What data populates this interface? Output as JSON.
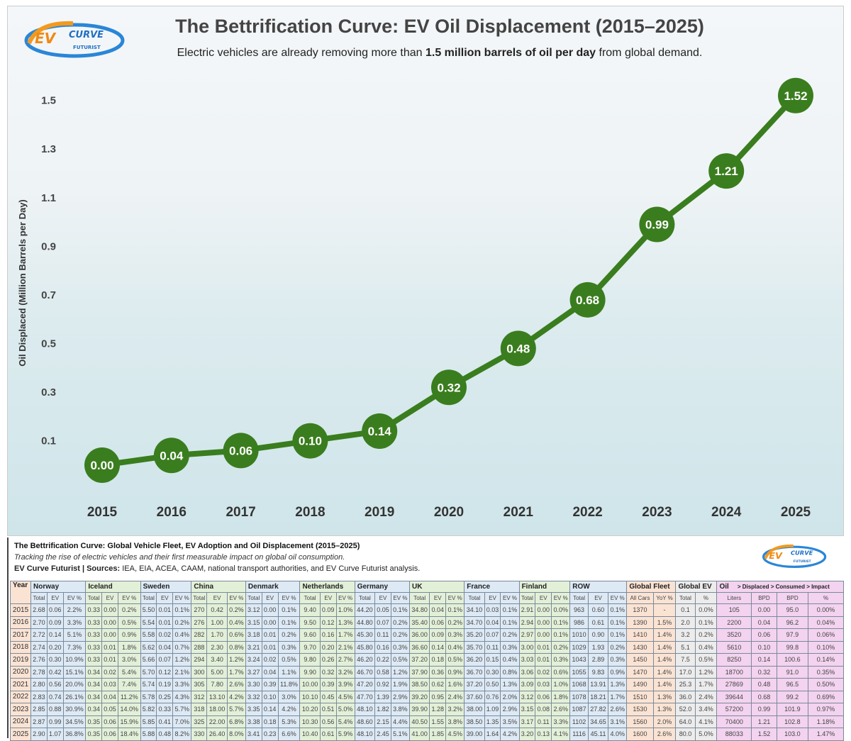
{
  "header": {
    "title": "The Bettrification Curve: EV Oil Displacement (2015–2025)",
    "subtitle_pre": "Electric vehicles are already removing more than ",
    "subtitle_bold": "1.5 million barrels of oil per day",
    "subtitle_post": " from global demand.",
    "logo_text": "EV CURVE FUTURIST"
  },
  "chart_data": {
    "type": "line",
    "ylabel": "Oil Displaced (Million Barrels per Day)",
    "xlabel": "",
    "categories": [
      "2015",
      "2016",
      "2017",
      "2018",
      "2019",
      "2020",
      "2021",
      "2022",
      "2023",
      "2024",
      "2025"
    ],
    "values": [
      0.0,
      0.04,
      0.06,
      0.1,
      0.14,
      0.32,
      0.48,
      0.68,
      0.99,
      1.21,
      1.52
    ],
    "yticks": [
      0.1,
      0.3,
      0.5,
      0.7,
      0.9,
      1.1,
      1.3,
      1.5
    ],
    "ylim": [
      0,
      1.6
    ],
    "grid": false,
    "color": "#3a7d1e"
  },
  "table": {
    "title": "The Bettrification Curve: Global Vehicle Fleet, EV Adoption and Oil Displacement (2015–2025)",
    "subtitle": "Tracking the rise of electric vehicles and their first measurable impact on global oil consumption.",
    "credit_bold": "EV Curve Futurist | Sources:",
    "credit": " IEA, EIA, ACEA, CAAM, national transport authorities, and EV Curve Futurist analysis.",
    "year_label": "Year",
    "groups": [
      {
        "name": "Norway",
        "color": "#dde9f5",
        "sub": [
          "Total",
          "EV",
          "EV %"
        ]
      },
      {
        "name": "Iceland",
        "color": "#e3f0d8",
        "sub": [
          "Total",
          "EV",
          "EV %"
        ]
      },
      {
        "name": "Sweden",
        "color": "#dde9f5",
        "sub": [
          "Total",
          "EV",
          "EV %"
        ]
      },
      {
        "name": "China",
        "color": "#e3f0d8",
        "sub": [
          "Total",
          "EV",
          "EV %"
        ]
      },
      {
        "name": "Denmark",
        "color": "#dde9f5",
        "sub": [
          "Total",
          "EV",
          "EV %"
        ]
      },
      {
        "name": "Netherlands",
        "color": "#e3f0d8",
        "sub": [
          "Total",
          "EV",
          "EV %"
        ]
      },
      {
        "name": "Germany",
        "color": "#dde9f5",
        "sub": [
          "Total",
          "EV",
          "EV %"
        ]
      },
      {
        "name": "UK",
        "color": "#e3f0d8",
        "sub": [
          "Total",
          "EV",
          "EV %"
        ]
      },
      {
        "name": "France",
        "color": "#dde9f5",
        "sub": [
          "Total",
          "EV",
          "EV %"
        ]
      },
      {
        "name": "Finland",
        "color": "#e3f0d8",
        "sub": [
          "Total",
          "EV",
          "EV %"
        ]
      },
      {
        "name": "ROW",
        "color": "#dde9f5",
        "sub": [
          "Total",
          "EV",
          "EV %"
        ]
      },
      {
        "name": "Global Fleet",
        "color": "#fbe3d3",
        "sub": [
          "All Cars",
          "YoY %"
        ]
      },
      {
        "name": "Global EV",
        "color": "#ececec",
        "sub": [
          "Total",
          "%"
        ]
      },
      {
        "name": "Oil",
        "note": "> Displaced > Consumed > Impact",
        "color": "#f3d3ef",
        "sub": [
          "Liters",
          "BPD",
          "BPD",
          "%"
        ]
      }
    ],
    "rows": [
      [
        "2015",
        "2.68",
        "0.06",
        "2.2%",
        "0.33",
        "0.00",
        "0.2%",
        "5.50",
        "0.01",
        "0.1%",
        "270",
        "0.42",
        "0.2%",
        "3.12",
        "0.00",
        "0.1%",
        "9.40",
        "0.09",
        "1.0%",
        "44.20",
        "0.05",
        "0.1%",
        "34.80",
        "0.04",
        "0.1%",
        "34.10",
        "0.03",
        "0.1%",
        "2.91",
        "0.00",
        "0.0%",
        "963",
        "0.60",
        "0.1%",
        "1370",
        "-",
        "0.1",
        "0.0%",
        "105",
        "0.00",
        "95.0",
        "0.00%"
      ],
      [
        "2016",
        "2.70",
        "0.09",
        "3.3%",
        "0.33",
        "0.00",
        "0.5%",
        "5.54",
        "0.01",
        "0.2%",
        "276",
        "1.00",
        "0.4%",
        "3.15",
        "0.00",
        "0.1%",
        "9.50",
        "0.12",
        "1.3%",
        "44.80",
        "0.07",
        "0.2%",
        "35.40",
        "0.06",
        "0.2%",
        "34.70",
        "0.04",
        "0.1%",
        "2.94",
        "0.00",
        "0.1%",
        "986",
        "0.61",
        "0.1%",
        "1390",
        "1.5%",
        "2.0",
        "0.1%",
        "2200",
        "0.04",
        "96.2",
        "0.04%"
      ],
      [
        "2017",
        "2.72",
        "0.14",
        "5.1%",
        "0.33",
        "0.00",
        "0.9%",
        "5.58",
        "0.02",
        "0.4%",
        "282",
        "1.70",
        "0.6%",
        "3.18",
        "0.01",
        "0.2%",
        "9.60",
        "0.16",
        "1.7%",
        "45.30",
        "0.11",
        "0.2%",
        "36.00",
        "0.09",
        "0.3%",
        "35.20",
        "0.07",
        "0.2%",
        "2.97",
        "0.00",
        "0.1%",
        "1010",
        "0.90",
        "0.1%",
        "1410",
        "1.4%",
        "3.2",
        "0.2%",
        "3520",
        "0.06",
        "97.9",
        "0.06%"
      ],
      [
        "2018",
        "2.74",
        "0.20",
        "7.3%",
        "0.33",
        "0.01",
        "1.8%",
        "5.62",
        "0.04",
        "0.7%",
        "288",
        "2.30",
        "0.8%",
        "3.21",
        "0.01",
        "0.3%",
        "9.70",
        "0.20",
        "2.1%",
        "45.80",
        "0.16",
        "0.3%",
        "36.60",
        "0.14",
        "0.4%",
        "35.70",
        "0.11",
        "0.3%",
        "3.00",
        "0.01",
        "0.2%",
        "1029",
        "1.93",
        "0.2%",
        "1430",
        "1.4%",
        "5.1",
        "0.4%",
        "5610",
        "0.10",
        "99.8",
        "0.10%"
      ],
      [
        "2019",
        "2.76",
        "0.30",
        "10.9%",
        "0.33",
        "0.01",
        "3.0%",
        "5.66",
        "0.07",
        "1.2%",
        "294",
        "3.40",
        "1.2%",
        "3.24",
        "0.02",
        "0.5%",
        "9.80",
        "0.26",
        "2.7%",
        "46.20",
        "0.22",
        "0.5%",
        "37.20",
        "0.18",
        "0.5%",
        "36.20",
        "0.15",
        "0.4%",
        "3.03",
        "0.01",
        "0.3%",
        "1043",
        "2.89",
        "0.3%",
        "1450",
        "1.4%",
        "7.5",
        "0.5%",
        "8250",
        "0.14",
        "100.6",
        "0.14%"
      ],
      [
        "2020",
        "2.78",
        "0.42",
        "15.1%",
        "0.34",
        "0.02",
        "5.4%",
        "5.70",
        "0.12",
        "2.1%",
        "300",
        "5.00",
        "1.7%",
        "3.27",
        "0.04",
        "1.1%",
        "9.90",
        "0.32",
        "3.2%",
        "46.70",
        "0.58",
        "1.2%",
        "37.90",
        "0.36",
        "0.9%",
        "36.70",
        "0.30",
        "0.8%",
        "3.06",
        "0.02",
        "0.6%",
        "1055",
        "9.83",
        "0.9%",
        "1470",
        "1.4%",
        "17.0",
        "1.2%",
        "18700",
        "0.32",
        "91.0",
        "0.35%"
      ],
      [
        "2021",
        "2.80",
        "0.56",
        "20.0%",
        "0.34",
        "0.03",
        "7.4%",
        "5.74",
        "0.19",
        "3.3%",
        "305",
        "7.80",
        "2.6%",
        "3.30",
        "0.39",
        "11.8%",
        "10.00",
        "0.39",
        "3.9%",
        "47.20",
        "0.92",
        "1.9%",
        "38.50",
        "0.62",
        "1.6%",
        "37.20",
        "0.50",
        "1.3%",
        "3.09",
        "0.03",
        "1.0%",
        "1068",
        "13.91",
        "1.3%",
        "1490",
        "1.4%",
        "25.3",
        "1.7%",
        "27869",
        "0.48",
        "96.5",
        "0.50%"
      ],
      [
        "2022",
        "2.83",
        "0.74",
        "26.1%",
        "0.34",
        "0.04",
        "11.2%",
        "5.78",
        "0.25",
        "4.3%",
        "312",
        "13.10",
        "4.2%",
        "3.32",
        "0.10",
        "3.0%",
        "10.10",
        "0.45",
        "4.5%",
        "47.70",
        "1.39",
        "2.9%",
        "39.20",
        "0.95",
        "2.4%",
        "37.60",
        "0.76",
        "2.0%",
        "3.12",
        "0.06",
        "1.8%",
        "1078",
        "18.21",
        "1.7%",
        "1510",
        "1.3%",
        "36.0",
        "2.4%",
        "39644",
        "0.68",
        "99.2",
        "0.69%"
      ],
      [
        "2023",
        "2.85",
        "0.88",
        "30.9%",
        "0.34",
        "0.05",
        "14.0%",
        "5.82",
        "0.33",
        "5.7%",
        "318",
        "18.00",
        "5.7%",
        "3.35",
        "0.14",
        "4.2%",
        "10.20",
        "0.51",
        "5.0%",
        "48.10",
        "1.82",
        "3.8%",
        "39.90",
        "1.28",
        "3.2%",
        "38.00",
        "1.09",
        "2.9%",
        "3.15",
        "0.08",
        "2.6%",
        "1087",
        "27.82",
        "2.6%",
        "1530",
        "1.3%",
        "52.0",
        "3.4%",
        "57200",
        "0.99",
        "101.9",
        "0.97%"
      ],
      [
        "2024",
        "2.87",
        "0.99",
        "34.5%",
        "0.35",
        "0.06",
        "15.9%",
        "5.85",
        "0.41",
        "7.0%",
        "325",
        "22.00",
        "6.8%",
        "3.38",
        "0.18",
        "5.3%",
        "10.30",
        "0.56",
        "5.4%",
        "48.60",
        "2.15",
        "4.4%",
        "40.50",
        "1.55",
        "3.8%",
        "38.50",
        "1.35",
        "3.5%",
        "3.17",
        "0.11",
        "3.3%",
        "1102",
        "34.65",
        "3.1%",
        "1560",
        "2.0%",
        "64.0",
        "4.1%",
        "70400",
        "1.21",
        "102.8",
        "1.18%"
      ],
      [
        "2025",
        "2.90",
        "1.07",
        "36.8%",
        "0.35",
        "0.06",
        "18.4%",
        "5.88",
        "0.48",
        "8.2%",
        "330",
        "26.40",
        "8.0%",
        "3.41",
        "0.23",
        "6.6%",
        "10.40",
        "0.61",
        "5.9%",
        "48.10",
        "2.45",
        "5.1%",
        "41.00",
        "1.85",
        "4.5%",
        "39.00",
        "1.64",
        "4.2%",
        "3.20",
        "0.13",
        "4.1%",
        "1116",
        "45.11",
        "4.0%",
        "1600",
        "2.6%",
        "80.0",
        "5.0%",
        "88033",
        "1.52",
        "103.0",
        "1.47%"
      ]
    ]
  }
}
